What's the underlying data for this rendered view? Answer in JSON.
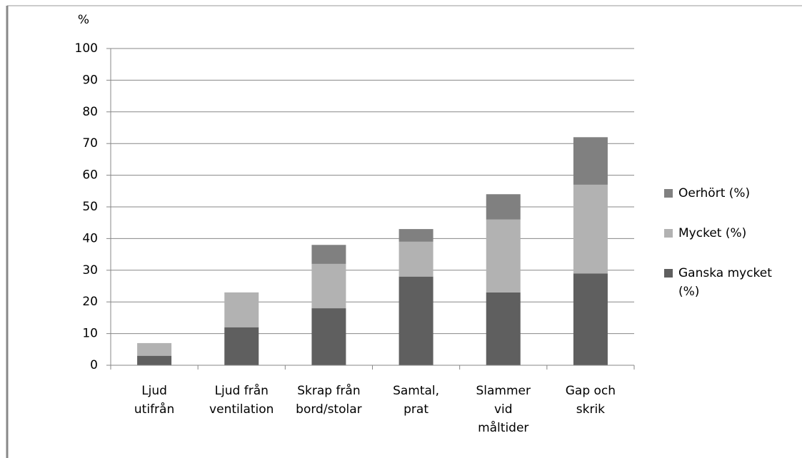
{
  "chart_data": {
    "type": "stacked-bar",
    "y_label": "%",
    "categories": [
      "Ljud\nutifrån",
      "Ljud från\nventilation",
      "Skrap från\nbord/stolar",
      "Samtal,\nprat",
      "Slammer\nvid\nmåltider",
      "Gap och\nskrik"
    ],
    "series": [
      {
        "name": "Ganska mycket (%)",
        "color": "#5f5f5f",
        "values": [
          3,
          12,
          18,
          28,
          23,
          29
        ]
      },
      {
        "name": "Mycket (%)",
        "color": "#b2b2b2",
        "values": [
          4,
          11,
          14,
          11,
          23,
          28
        ]
      },
      {
        "name": "Oerhört (%)",
        "color": "#808080",
        "values": [
          0,
          0,
          6,
          4,
          8,
          15
        ]
      }
    ],
    "ylim": [
      0,
      100
    ],
    "yticks": [
      0,
      10,
      20,
      30,
      40,
      50,
      60,
      70,
      80,
      90,
      100
    ],
    "grid": true
  }
}
